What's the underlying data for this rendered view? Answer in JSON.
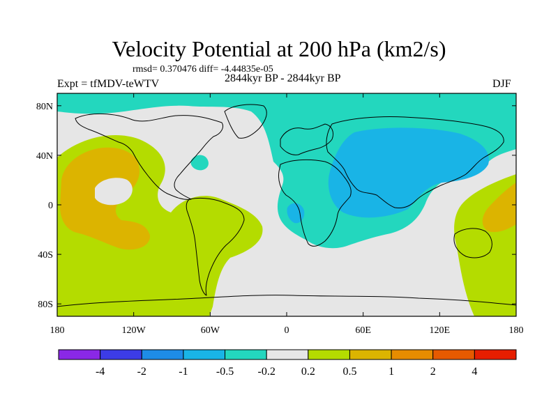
{
  "title": "Velocity Potential at 200 hPa (km2/s)",
  "stats_text": "rmsd= 0.370476 diff= -4.44835e-05",
  "left_label": "Expt = tfMDV-teWTV",
  "center_label": "2844kyr BP - 2844kyr BP",
  "right_label": "DJF",
  "lat_ticks": [
    {
      "lat": 80,
      "label": "80N"
    },
    {
      "lat": 40,
      "label": "40N"
    },
    {
      "lat": 0,
      "label": "0"
    },
    {
      "lat": -40,
      "label": "40S"
    },
    {
      "lat": -80,
      "label": "80S"
    }
  ],
  "lon_ticks": [
    {
      "lon": -180,
      "label": "180"
    },
    {
      "lon": -120,
      "label": "120W"
    },
    {
      "lon": -60,
      "label": "60W"
    },
    {
      "lon": 0,
      "label": "0"
    },
    {
      "lon": 60,
      "label": "60E"
    },
    {
      "lon": 120,
      "label": "120E"
    },
    {
      "lon": 180,
      "label": "180"
    }
  ],
  "colorbar": {
    "colors": [
      "#8a28e6",
      "#3c3ce6",
      "#1e8ce6",
      "#19b4e6",
      "#23d7be",
      "#e6e6e6",
      "#b4dc00",
      "#dcb400",
      "#e68c00",
      "#e65a00",
      "#e61e00"
    ],
    "labels": [
      "-4",
      "-2",
      "-1",
      "-0.5",
      "-0.2",
      "0.2",
      "0.5",
      "1",
      "2",
      "4"
    ]
  },
  "fill_colors": {
    "background": "#e6e6e6",
    "neg_weak": "#23d7be",
    "neg_mid": "#19b4e6",
    "pos_weak": "#b4dc00",
    "pos_mid": "#dcb400"
  }
}
